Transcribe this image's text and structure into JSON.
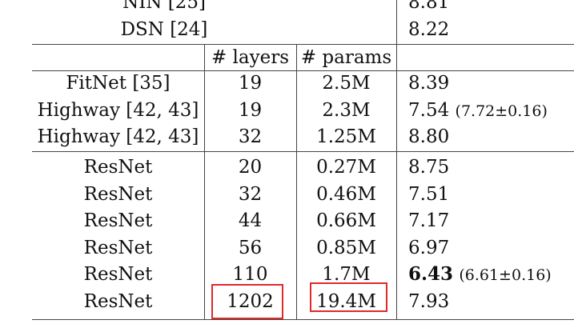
{
  "top_rows": [
    {
      "method": "NIN [25]",
      "error": "8.81"
    },
    {
      "method": "DSN [24]",
      "error": "8.22"
    }
  ],
  "header": {
    "layers": "# layers",
    "params": "# params"
  },
  "group1": [
    {
      "method": "FitNet [35]",
      "layers": "19",
      "params": "2.5M",
      "error": "8.39",
      "note": ""
    },
    {
      "method": "Highway [42, 43]",
      "layers": "19",
      "params": "2.3M",
      "error": "7.54",
      "note": "(7.72±0.16)"
    },
    {
      "method": "Highway [42, 43]",
      "layers": "32",
      "params": "1.25M",
      "error": "8.80",
      "note": ""
    }
  ],
  "group2": [
    {
      "method": "ResNet",
      "layers": "20",
      "params": "0.27M",
      "error": "8.75",
      "note": ""
    },
    {
      "method": "ResNet",
      "layers": "32",
      "params": "0.46M",
      "error": "7.51",
      "note": ""
    },
    {
      "method": "ResNet",
      "layers": "44",
      "params": "0.66M",
      "error": "7.17",
      "note": ""
    },
    {
      "method": "ResNet",
      "layers": "56",
      "params": "0.85M",
      "error": "6.97",
      "note": ""
    },
    {
      "method": "ResNet",
      "layers": "110",
      "params": "1.7M",
      "error": "6.43",
      "note": "(6.61±0.16)"
    },
    {
      "method": "ResNet",
      "layers": "1202",
      "params": "19.4M",
      "error": "7.93",
      "note": ""
    }
  ],
  "highlight_color": "#e02a2a"
}
